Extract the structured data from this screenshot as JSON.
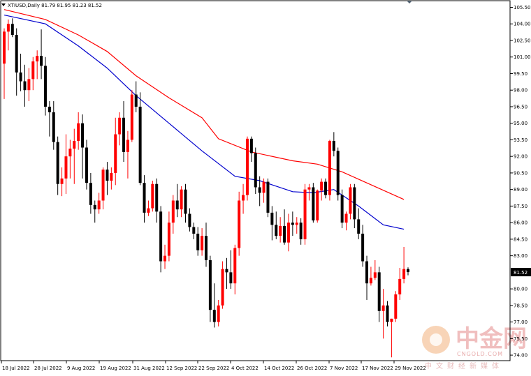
{
  "header": {
    "symbol_line": "XTIUSD,Daily  81.79 81.95 81.23 81.52"
  },
  "chart_data": {
    "type": "candlestick",
    "symbol": "XTIUSD",
    "timeframe": "Daily",
    "last_price_label": "81.52",
    "y_ticks": [
      "105.50",
      "104.00",
      "102.50",
      "101.00",
      "99.50",
      "98.00",
      "96.50",
      "95.00",
      "93.50",
      "92.00",
      "90.50",
      "89.00",
      "87.50",
      "86.00",
      "84.50",
      "83.00",
      "80.00",
      "78.50",
      "77.00",
      "75.50",
      "74.00"
    ],
    "x_ticks": [
      "18 Jul 2022",
      "28 Jul 2022",
      "9 Aug 2022",
      "19 Aug 2022",
      "31 Aug 2022",
      "12 Sep 2022",
      "22 Sep 2022",
      "4 Oct 2022",
      "14 Oct 2022",
      "26 Oct 2022",
      "7 Nov 2022",
      "17 Nov 2022",
      "29 Nov 2022"
    ],
    "ylim": [
      73.5,
      106.1
    ],
    "colors": {
      "up": "#ff0000",
      "down": "#000000",
      "ma_fast": "#0000cd",
      "ma_slow": "#ff0000",
      "last_price_box": "#000000"
    },
    "candles": [
      {
        "o": 100.4,
        "h": 103.6,
        "l": 97.2,
        "c": 103.3
      },
      {
        "o": 103.3,
        "h": 104.4,
        "l": 101.6,
        "c": 104.0
      },
      {
        "o": 104.0,
        "h": 104.5,
        "l": 102.8,
        "c": 103.0
      },
      {
        "o": 103.0,
        "h": 103.6,
        "l": 97.5,
        "c": 99.6
      },
      {
        "o": 99.6,
        "h": 101.3,
        "l": 97.9,
        "c": 98.8
      },
      {
        "o": 98.8,
        "h": 100.3,
        "l": 96.5,
        "c": 98.0
      },
      {
        "o": 98.0,
        "h": 100.0,
        "l": 97.0,
        "c": 99.0
      },
      {
        "o": 99.0,
        "h": 101.0,
        "l": 98.0,
        "c": 100.6
      },
      {
        "o": 100.6,
        "h": 101.6,
        "l": 99.0,
        "c": 101.1
      },
      {
        "o": 101.1,
        "h": 103.5,
        "l": 99.0,
        "c": 100.2
      },
      {
        "o": 100.2,
        "h": 101.0,
        "l": 95.7,
        "c": 96.5
      },
      {
        "o": 96.5,
        "h": 97.0,
        "l": 93.8,
        "c": 96.0
      },
      {
        "o": 96.0,
        "h": 97.0,
        "l": 92.6,
        "c": 93.3
      },
      {
        "o": 93.3,
        "h": 93.8,
        "l": 88.5,
        "c": 89.5
      },
      {
        "o": 89.5,
        "h": 91.0,
        "l": 88.4,
        "c": 90.0
      },
      {
        "o": 90.0,
        "h": 94.0,
        "l": 88.6,
        "c": 92.0
      },
      {
        "o": 92.0,
        "h": 93.5,
        "l": 90.0,
        "c": 92.7
      },
      {
        "o": 92.7,
        "h": 94.5,
        "l": 89.5,
        "c": 93.4
      },
      {
        "o": 93.4,
        "h": 96.0,
        "l": 92.6,
        "c": 95.0
      },
      {
        "o": 95.0,
        "h": 95.8,
        "l": 90.0,
        "c": 92.8
      },
      {
        "o": 92.8,
        "h": 93.5,
        "l": 89.0,
        "c": 89.6
      },
      {
        "o": 89.6,
        "h": 90.5,
        "l": 86.8,
        "c": 87.6
      },
      {
        "o": 87.6,
        "h": 88.0,
        "l": 86.0,
        "c": 87.2
      },
      {
        "o": 87.2,
        "h": 88.7,
        "l": 86.8,
        "c": 88.0
      },
      {
        "o": 88.0,
        "h": 91.0,
        "l": 87.2,
        "c": 90.8
      },
      {
        "o": 90.8,
        "h": 91.5,
        "l": 88.5,
        "c": 89.8
      },
      {
        "o": 89.8,
        "h": 91.0,
        "l": 89.0,
        "c": 90.5
      },
      {
        "o": 90.5,
        "h": 95.5,
        "l": 89.4,
        "c": 94.0
      },
      {
        "o": 94.0,
        "h": 96.0,
        "l": 93.0,
        "c": 95.5
      },
      {
        "o": 95.5,
        "h": 97.0,
        "l": 91.5,
        "c": 92.4
      },
      {
        "o": 92.4,
        "h": 94.3,
        "l": 90.0,
        "c": 93.5
      },
      {
        "o": 93.5,
        "h": 98.0,
        "l": 93.3,
        "c": 97.6
      },
      {
        "o": 97.6,
        "h": 98.8,
        "l": 96.0,
        "c": 96.5
      },
      {
        "o": 96.5,
        "h": 97.8,
        "l": 89.4,
        "c": 89.6
      },
      {
        "o": 89.6,
        "h": 90.3,
        "l": 86.0,
        "c": 86.9
      },
      {
        "o": 86.9,
        "h": 88.0,
        "l": 86.6,
        "c": 87.3
      },
      {
        "o": 87.3,
        "h": 89.8,
        "l": 87.0,
        "c": 89.5
      },
      {
        "o": 89.5,
        "h": 90.0,
        "l": 86.0,
        "c": 87.0
      },
      {
        "o": 87.0,
        "h": 87.5,
        "l": 81.5,
        "c": 82.5
      },
      {
        "o": 82.5,
        "h": 84.0,
        "l": 81.8,
        "c": 83.0
      },
      {
        "o": 83.0,
        "h": 87.0,
        "l": 82.5,
        "c": 86.0
      },
      {
        "o": 86.0,
        "h": 88.5,
        "l": 85.0,
        "c": 88.0
      },
      {
        "o": 88.0,
        "h": 89.5,
        "l": 86.5,
        "c": 87.2
      },
      {
        "o": 87.2,
        "h": 89.3,
        "l": 86.5,
        "c": 89.0
      },
      {
        "o": 89.0,
        "h": 89.5,
        "l": 86.0,
        "c": 86.8
      },
      {
        "o": 86.8,
        "h": 87.3,
        "l": 85.2,
        "c": 85.6
      },
      {
        "o": 85.6,
        "h": 86.0,
        "l": 84.5,
        "c": 85.0
      },
      {
        "o": 85.0,
        "h": 85.6,
        "l": 83.0,
        "c": 83.5
      },
      {
        "o": 83.5,
        "h": 85.5,
        "l": 83.0,
        "c": 84.8
      },
      {
        "o": 84.8,
        "h": 86.0,
        "l": 82.0,
        "c": 82.6
      },
      {
        "o": 82.6,
        "h": 83.0,
        "l": 77.0,
        "c": 78.1
      },
      {
        "o": 78.1,
        "h": 80.5,
        "l": 76.5,
        "c": 77.0
      },
      {
        "o": 77.0,
        "h": 79.0,
        "l": 76.6,
        "c": 78.5
      },
      {
        "o": 78.5,
        "h": 82.5,
        "l": 78.2,
        "c": 81.8
      },
      {
        "o": 81.8,
        "h": 82.8,
        "l": 80.0,
        "c": 81.5
      },
      {
        "o": 81.5,
        "h": 83.5,
        "l": 80.0,
        "c": 80.5
      },
      {
        "o": 80.5,
        "h": 84.0,
        "l": 79.5,
        "c": 83.7
      },
      {
        "o": 83.7,
        "h": 88.8,
        "l": 83.0,
        "c": 88.0
      },
      {
        "o": 88.0,
        "h": 89.5,
        "l": 86.8,
        "c": 88.5
      },
      {
        "o": 88.5,
        "h": 93.8,
        "l": 88.0,
        "c": 93.6
      },
      {
        "o": 93.6,
        "h": 93.8,
        "l": 91.5,
        "c": 92.3
      },
      {
        "o": 92.3,
        "h": 92.8,
        "l": 88.6,
        "c": 89.2
      },
      {
        "o": 89.2,
        "h": 90.2,
        "l": 87.5,
        "c": 88.7
      },
      {
        "o": 88.7,
        "h": 90.0,
        "l": 87.8,
        "c": 89.7
      },
      {
        "o": 89.7,
        "h": 90.0,
        "l": 86.5,
        "c": 86.9
      },
      {
        "o": 86.9,
        "h": 87.5,
        "l": 84.4,
        "c": 85.8
      },
      {
        "o": 85.8,
        "h": 87.0,
        "l": 84.5,
        "c": 84.8
      },
      {
        "o": 84.8,
        "h": 86.5,
        "l": 84.2,
        "c": 85.7
      },
      {
        "o": 85.7,
        "h": 87.2,
        "l": 84.0,
        "c": 84.2
      },
      {
        "o": 84.2,
        "h": 86.8,
        "l": 83.4,
        "c": 86.0
      },
      {
        "o": 86.0,
        "h": 87.0,
        "l": 84.8,
        "c": 85.8
      },
      {
        "o": 85.8,
        "h": 86.5,
        "l": 85.0,
        "c": 86.0
      },
      {
        "o": 86.0,
        "h": 86.4,
        "l": 84.0,
        "c": 84.5
      },
      {
        "o": 84.5,
        "h": 89.5,
        "l": 84.0,
        "c": 89.0
      },
      {
        "o": 89.0,
        "h": 89.5,
        "l": 88.0,
        "c": 89.2
      },
      {
        "o": 89.2,
        "h": 89.6,
        "l": 86.0,
        "c": 86.2
      },
      {
        "o": 86.2,
        "h": 89.0,
        "l": 86.0,
        "c": 88.9
      },
      {
        "o": 88.9,
        "h": 90.0,
        "l": 88.0,
        "c": 89.7
      },
      {
        "o": 89.7,
        "h": 90.0,
        "l": 88.2,
        "c": 88.5
      },
      {
        "o": 88.5,
        "h": 93.5,
        "l": 88.0,
        "c": 93.4
      },
      {
        "o": 93.4,
        "h": 94.2,
        "l": 92.0,
        "c": 92.5
      },
      {
        "o": 92.5,
        "h": 92.8,
        "l": 88.0,
        "c": 88.5
      },
      {
        "o": 88.5,
        "h": 89.0,
        "l": 85.5,
        "c": 86.0
      },
      {
        "o": 86.0,
        "h": 87.0,
        "l": 85.3,
        "c": 86.8
      },
      {
        "o": 86.8,
        "h": 89.5,
        "l": 86.3,
        "c": 89.2
      },
      {
        "o": 89.2,
        "h": 89.5,
        "l": 85.5,
        "c": 86.3
      },
      {
        "o": 86.3,
        "h": 87.3,
        "l": 84.5,
        "c": 85.0
      },
      {
        "o": 85.0,
        "h": 85.8,
        "l": 82.0,
        "c": 82.5
      },
      {
        "o": 82.5,
        "h": 83.0,
        "l": 79.0,
        "c": 80.5
      },
      {
        "o": 80.5,
        "h": 82.0,
        "l": 80.3,
        "c": 81.0
      },
      {
        "o": 81.0,
        "h": 82.6,
        "l": 80.8,
        "c": 81.5
      },
      {
        "o": 81.5,
        "h": 82.0,
        "l": 77.0,
        "c": 78.0
      },
      {
        "o": 78.0,
        "h": 80.0,
        "l": 75.5,
        "c": 78.5
      },
      {
        "o": 78.5,
        "h": 78.9,
        "l": 76.6,
        "c": 77.0
      },
      {
        "o": 77.0,
        "h": 77.3,
        "l": 73.8,
        "c": 77.3
      },
      {
        "o": 77.3,
        "h": 79.8,
        "l": 77.0,
        "c": 79.5
      },
      {
        "o": 79.5,
        "h": 81.9,
        "l": 79.0,
        "c": 80.9
      },
      {
        "o": 80.9,
        "h": 83.8,
        "l": 80.5,
        "c": 81.8
      },
      {
        "o": 81.79,
        "h": 81.95,
        "l": 81.23,
        "c": 81.52
      }
    ],
    "ma_fast": [
      [
        0,
        104.8
      ],
      [
        10,
        104.0
      ],
      [
        18,
        102.0
      ],
      [
        25,
        100.0
      ],
      [
        32,
        97.5
      ],
      [
        40,
        95.0
      ],
      [
        48,
        92.5
      ],
      [
        56,
        90.2
      ],
      [
        62,
        89.8
      ],
      [
        70,
        88.8
      ],
      [
        75,
        88.7
      ],
      [
        80,
        89.0
      ],
      [
        86,
        87.5
      ],
      [
        92,
        85.8
      ],
      [
        97,
        85.4
      ]
    ],
    "ma_slow": [
      [
        0,
        105.3
      ],
      [
        10,
        104.4
      ],
      [
        18,
        103.0
      ],
      [
        25,
        101.5
      ],
      [
        32,
        99.3
      ],
      [
        40,
        97.3
      ],
      [
        48,
        95.5
      ],
      [
        52,
        93.6
      ],
      [
        60,
        92.4
      ],
      [
        70,
        91.6
      ],
      [
        76,
        91.3
      ],
      [
        82,
        90.6
      ],
      [
        88,
        89.6
      ],
      [
        97,
        88.1
      ]
    ]
  },
  "watermark": {
    "brand_zh": "中金网",
    "brand_en": "CNGOLD.COM",
    "tagline": "中文财经新媒体"
  }
}
